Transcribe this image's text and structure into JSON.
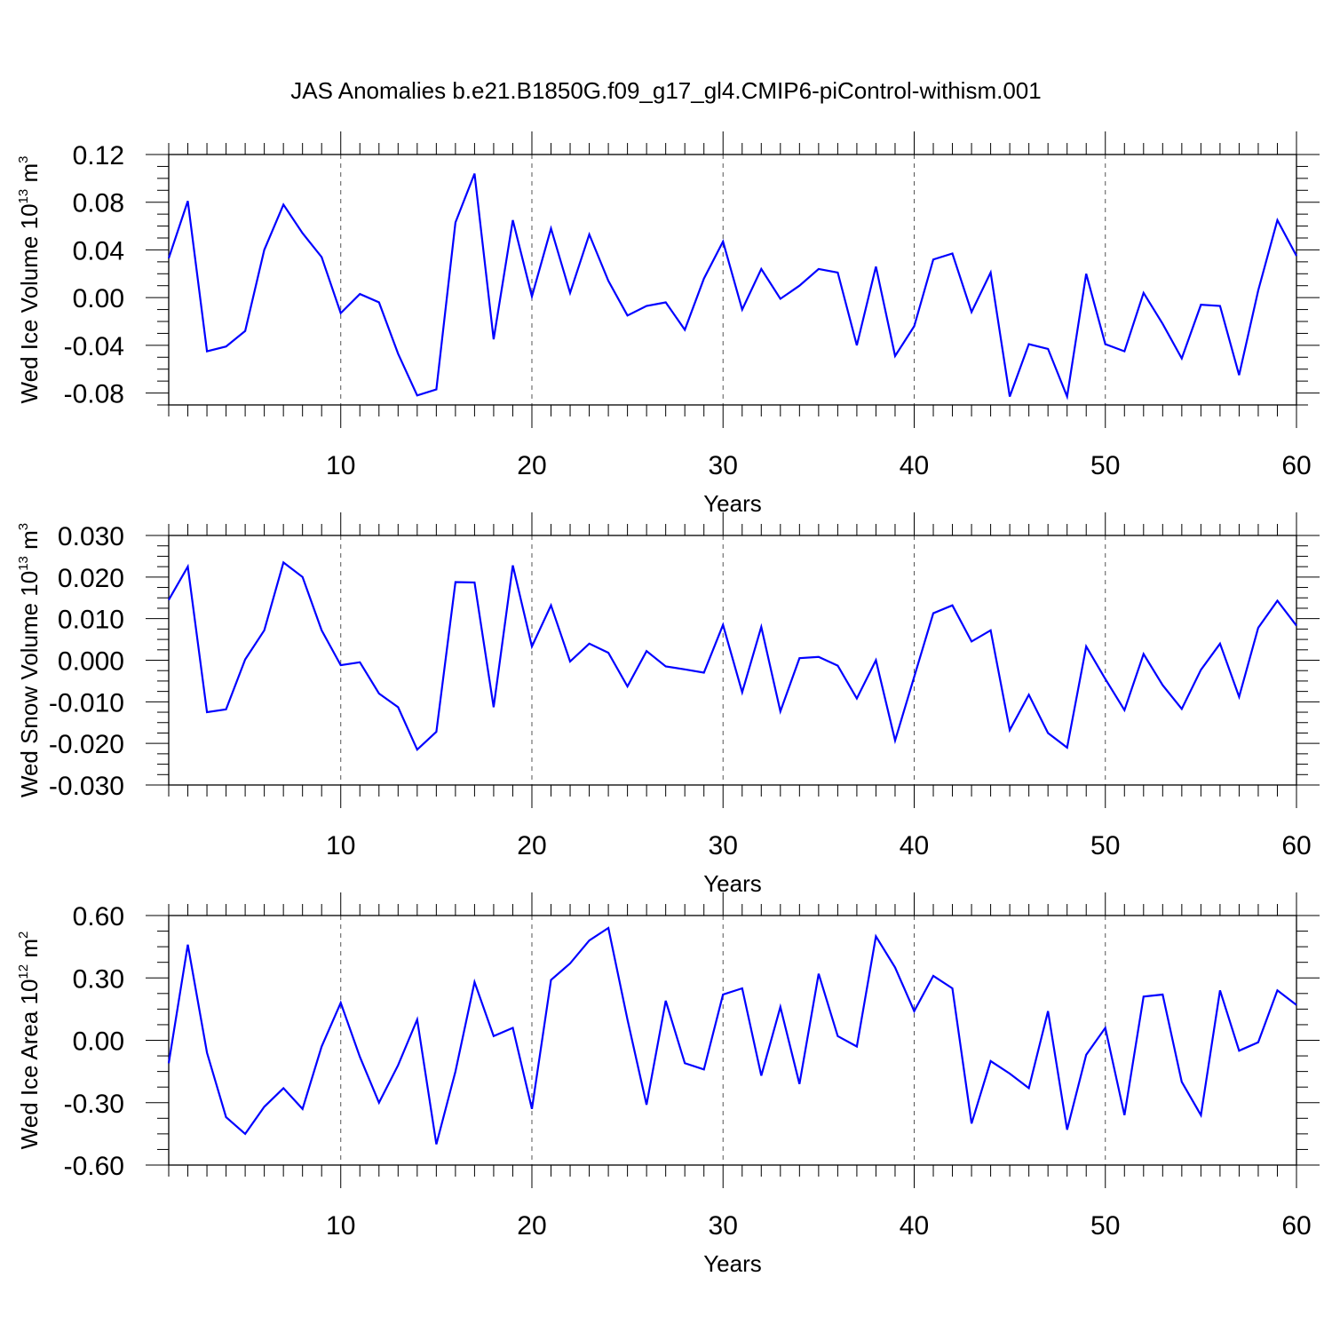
{
  "title": "JAS Anomalies b.e21.B1850G.f09_g17_gl4.CMIP6-piControl-withism.001",
  "colors": {
    "series": "#0000ff",
    "axis": "#000000",
    "grid": "#555555",
    "background": "#ffffff"
  },
  "chart_data": [
    {
      "type": "line",
      "ylabel": {
        "text": "Wed Ice Volume 10",
        "sup": "13",
        "unit": "m",
        "unit_sup": "3"
      },
      "xlabel": "Years",
      "xlim": [
        1,
        60
      ],
      "ylim": [
        -0.09,
        0.12
      ],
      "yticks": [
        0.12,
        0.08,
        0.04,
        0.0,
        -0.04,
        -0.08
      ],
      "ytick_labels": [
        "0.12",
        "0.08",
        "0.04",
        "0.00",
        "-0.04",
        "-0.08"
      ],
      "xticks": [
        10,
        20,
        30,
        40,
        50,
        60
      ],
      "xtick_labels": [
        "10",
        "20",
        "30",
        "40",
        "50",
        "60"
      ],
      "grid": "vertical dashed at major x ticks",
      "x": [
        1,
        2,
        3,
        4,
        5,
        6,
        7,
        8,
        9,
        10,
        11,
        12,
        13,
        14,
        15,
        16,
        17,
        18,
        19,
        20,
        21,
        22,
        23,
        24,
        25,
        26,
        27,
        28,
        29,
        30,
        31,
        32,
        33,
        34,
        35,
        36,
        37,
        38,
        39,
        40,
        41,
        42,
        43,
        44,
        45,
        46,
        47,
        48,
        49,
        50,
        51,
        52,
        53,
        54,
        55,
        56,
        57,
        58,
        59,
        60
      ],
      "series": [
        {
          "values": [
            0.033,
            0.081,
            -0.045,
            -0.041,
            -0.028,
            0.04,
            0.078,
            0.054,
            0.034,
            -0.013,
            0.003,
            -0.004,
            -0.047,
            -0.082,
            -0.077,
            0.063,
            0.104,
            -0.035,
            0.065,
            0.001,
            0.058,
            0.004,
            0.053,
            0.014,
            -0.015,
            -0.007,
            -0.004,
            -0.027,
            0.016,
            0.047,
            -0.01,
            0.024,
            -0.001,
            0.01,
            0.024,
            0.021,
            -0.04,
            0.026,
            -0.049,
            -0.024,
            0.032,
            0.037,
            -0.012,
            0.021,
            -0.083,
            -0.039,
            -0.043,
            -0.083,
            0.02,
            -0.039,
            -0.045,
            0.004,
            -0.022,
            -0.051,
            -0.006,
            -0.007,
            -0.065,
            0.006,
            0.065,
            0.035
          ]
        }
      ]
    },
    {
      "type": "line",
      "ylabel": {
        "text": "Wed Snow Volume 10",
        "sup": "13",
        "unit": "m",
        "unit_sup": "3"
      },
      "xlabel": "Years",
      "xlim": [
        1,
        60
      ],
      "ylim": [
        -0.03,
        0.03
      ],
      "yticks": [
        0.03,
        0.02,
        0.01,
        0.0,
        -0.01,
        -0.02,
        -0.03
      ],
      "ytick_labels": [
        "0.030",
        "0.020",
        "0.010",
        "0.000",
        "-0.010",
        "-0.020",
        "-0.030"
      ],
      "xticks": [
        10,
        20,
        30,
        40,
        50,
        60
      ],
      "xtick_labels": [
        "10",
        "20",
        "30",
        "40",
        "50",
        "60"
      ],
      "grid": "vertical dashed at major x ticks",
      "x": [
        1,
        2,
        3,
        4,
        5,
        6,
        7,
        8,
        9,
        10,
        11,
        12,
        13,
        14,
        15,
        16,
        17,
        18,
        19,
        20,
        21,
        22,
        23,
        24,
        25,
        26,
        27,
        28,
        29,
        30,
        31,
        32,
        33,
        34,
        35,
        36,
        37,
        38,
        39,
        40,
        41,
        42,
        43,
        44,
        45,
        46,
        47,
        48,
        49,
        50,
        51,
        52,
        53,
        54,
        55,
        56,
        57,
        58,
        59,
        60
      ],
      "series": [
        {
          "values": [
            0.0145,
            0.0225,
            -0.0125,
            -0.0118,
            0.0002,
            0.0072,
            0.0235,
            0.02,
            0.0072,
            -0.0012,
            -0.0005,
            -0.008,
            -0.0113,
            -0.0215,
            -0.0172,
            0.0188,
            0.0187,
            -0.0113,
            0.0228,
            0.0033,
            0.0132,
            -0.0003,
            0.004,
            0.0018,
            -0.0063,
            0.0022,
            -0.0015,
            -0.0022,
            -0.003,
            0.0085,
            -0.0077,
            0.008,
            -0.0123,
            0.0005,
            0.0008,
            -0.0013,
            -0.0092,
            0.0,
            -0.0193,
            -0.004,
            0.0113,
            0.0132,
            0.0045,
            0.0072,
            -0.0168,
            -0.0083,
            -0.0175,
            -0.021,
            0.0033,
            -0.0045,
            -0.012,
            0.0015,
            -0.006,
            -0.0117,
            -0.0023,
            0.004,
            -0.0088,
            0.0078,
            0.0143,
            0.0083
          ]
        }
      ]
    },
    {
      "type": "line",
      "ylabel": {
        "text": "Wed Ice Area 10",
        "sup": "12",
        "unit": "m",
        "unit_sup": "2"
      },
      "xlabel": "Years",
      "xlim": [
        1,
        60
      ],
      "ylim": [
        -0.6,
        0.6
      ],
      "yticks": [
        0.6,
        0.3,
        0.0,
        -0.3,
        -0.6
      ],
      "ytick_labels": [
        "0.60",
        "0.30",
        "0.00",
        "-0.30",
        "-0.60"
      ],
      "xticks": [
        10,
        20,
        30,
        40,
        50,
        60
      ],
      "xtick_labels": [
        "10",
        "20",
        "30",
        "40",
        "50",
        "60"
      ],
      "grid": "vertical dashed at major x ticks",
      "x": [
        1,
        2,
        3,
        4,
        5,
        6,
        7,
        8,
        9,
        10,
        11,
        12,
        13,
        14,
        15,
        16,
        17,
        18,
        19,
        20,
        21,
        22,
        23,
        24,
        25,
        26,
        27,
        28,
        29,
        30,
        31,
        32,
        33,
        34,
        35,
        36,
        37,
        38,
        39,
        40,
        41,
        42,
        43,
        44,
        45,
        46,
        47,
        48,
        49,
        50,
        51,
        52,
        53,
        54,
        55,
        56,
        57,
        58,
        59,
        60
      ],
      "series": [
        {
          "values": [
            -0.11,
            0.46,
            -0.06,
            -0.37,
            -0.45,
            -0.32,
            -0.23,
            -0.33,
            -0.03,
            0.18,
            -0.08,
            -0.3,
            -0.12,
            0.1,
            -0.5,
            -0.15,
            0.28,
            0.02,
            0.06,
            -0.33,
            0.29,
            0.37,
            0.48,
            0.54,
            0.1,
            -0.31,
            0.19,
            -0.11,
            -0.14,
            0.22,
            0.25,
            -0.17,
            0.16,
            -0.21,
            0.32,
            0.02,
            -0.03,
            0.5,
            0.35,
            0.14,
            0.31,
            0.25,
            -0.4,
            -0.1,
            -0.16,
            -0.23,
            0.14,
            -0.43,
            -0.07,
            0.06,
            -0.36,
            0.21,
            0.22,
            -0.2,
            -0.36,
            0.24,
            -0.05,
            -0.01,
            0.24,
            0.17
          ]
        }
      ]
    }
  ]
}
